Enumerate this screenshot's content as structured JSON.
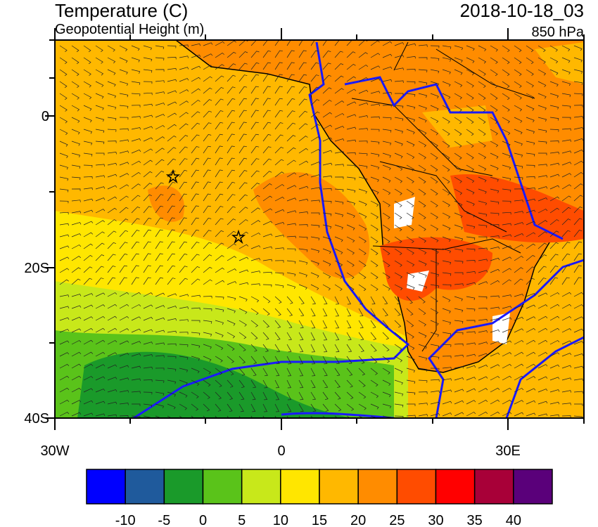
{
  "header": {
    "title": "Temperature (C)",
    "subtitle": "Geopotential Height (m)",
    "valid_time": "2018-10-18_03",
    "level": "850 hPa"
  },
  "axes": {
    "y_labels": [
      "0",
      "20S",
      "40S"
    ],
    "x_labels": [
      "30W",
      "0",
      "30E"
    ]
  },
  "colorbar": {
    "colors": [
      "#0000ff",
      "#1f5a9c",
      "#1a9a2a",
      "#5ac31a",
      "#c8e81a",
      "#ffe600",
      "#ffb800",
      "#ff8c00",
      "#ff4c00",
      "#ff0000",
      "#a80038",
      "#5a007a"
    ],
    "labels": [
      -10,
      -5,
      0,
      5,
      10,
      15,
      20,
      25,
      30,
      35,
      40
    ]
  }
}
